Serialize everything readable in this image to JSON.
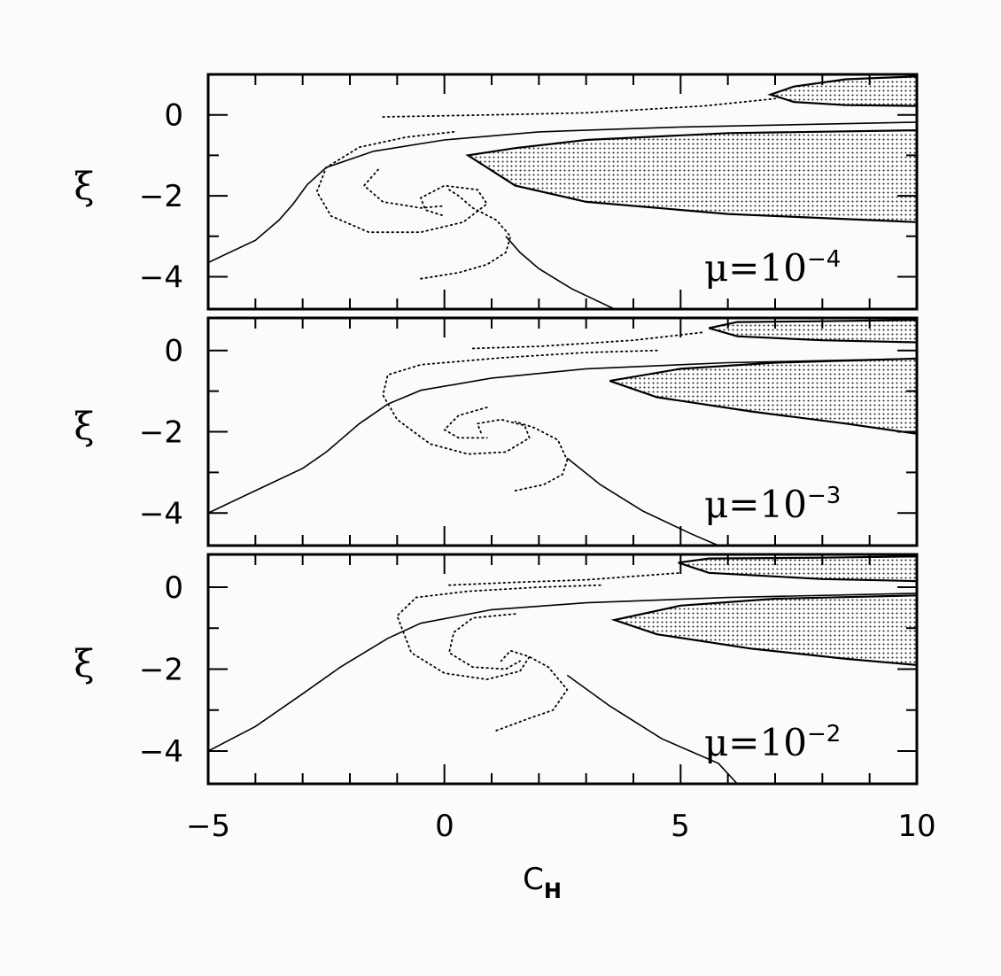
{
  "chart_data": {
    "type": "line",
    "shared_x": {
      "label": "C",
      "label_subscript": "H",
      "range": [
        -5,
        10
      ],
      "ticks": [
        -5,
        0,
        5,
        10
      ],
      "tick_labels": [
        "−5",
        "0",
        "5",
        "10"
      ]
    },
    "panels": [
      {
        "annotation": "μ=10",
        "annotation_exp": "−4",
        "ylabel": "ξ",
        "ylim": [
          -4.8,
          1.0
        ],
        "yticks": [
          0,
          -2,
          -4
        ],
        "ytick_labels": [
          "0",
          "−2",
          "−4"
        ],
        "solid_line": [
          [
            -5.0,
            -3.65
          ],
          [
            -4.0,
            -3.1
          ],
          [
            -3.5,
            -2.6
          ],
          [
            -3.2,
            -2.2
          ],
          [
            -2.9,
            -1.72
          ],
          [
            -2.5,
            -1.3
          ],
          [
            -1.5,
            -0.9
          ],
          [
            0.0,
            -0.62
          ],
          [
            2.0,
            -0.42
          ],
          [
            5.0,
            -0.3
          ],
          [
            10.0,
            -0.18
          ]
        ],
        "solid_line_lower": [
          [
            1.3,
            -3.0
          ],
          [
            1.6,
            -3.4
          ],
          [
            2.0,
            -3.8
          ],
          [
            2.7,
            -4.3
          ],
          [
            3.6,
            -4.8
          ]
        ],
        "dotted_curves": [
          [
            [
              -1.3,
              -0.05
            ],
            [
              1.0,
              0.0
            ],
            [
              3.0,
              0.05
            ],
            [
              5.5,
              0.22
            ],
            [
              7.0,
              0.4
            ]
          ],
          [
            [
              0.2,
              -0.42
            ],
            [
              -0.8,
              -0.55
            ],
            [
              -1.8,
              -0.8
            ],
            [
              -2.5,
              -1.3
            ],
            [
              -2.7,
              -1.9
            ],
            [
              -2.4,
              -2.5
            ],
            [
              -1.6,
              -2.9
            ],
            [
              -0.5,
              -2.9
            ],
            [
              0.4,
              -2.65
            ],
            [
              0.9,
              -2.2
            ],
            [
              0.7,
              -1.85
            ],
            [
              0.0,
              -1.75
            ],
            [
              -0.5,
              -2.05
            ],
            [
              -0.4,
              -2.35
            ],
            [
              0.0,
              -2.5
            ]
          ],
          [
            [
              -1.4,
              -1.35
            ],
            [
              -1.7,
              -1.75
            ],
            [
              -1.3,
              -2.15
            ],
            [
              -0.5,
              -2.3
            ],
            [
              0.0,
              -2.25
            ]
          ],
          [
            [
              -0.5,
              -4.05
            ],
            [
              0.3,
              -3.9
            ],
            [
              0.9,
              -3.7
            ],
            [
              1.3,
              -3.4
            ],
            [
              1.4,
              -3.0
            ],
            [
              1.1,
              -2.6
            ],
            [
              0.6,
              -2.3
            ],
            [
              0.3,
              -2.0
            ],
            [
              0.1,
              -1.85
            ]
          ]
        ],
        "shaded_regions": [
          {
            "upper": [
              [
                10.0,
                -0.38
              ],
              [
                6.0,
                -0.45
              ],
              [
                3.0,
                -0.62
              ],
              [
                1.5,
                -0.82
              ],
              [
                0.5,
                -1.0
              ]
            ],
            "lower": [
              [
                0.5,
                -1.0
              ],
              [
                1.5,
                -1.75
              ],
              [
                3.0,
                -2.15
              ],
              [
                6.0,
                -2.45
              ],
              [
                10.0,
                -2.65
              ]
            ]
          },
          {
            "upper": [
              [
                10.0,
                0.95
              ],
              [
                8.5,
                0.88
              ],
              [
                7.4,
                0.7
              ],
              [
                6.9,
                0.5
              ]
            ],
            "lower": [
              [
                6.9,
                0.5
              ],
              [
                7.4,
                0.32
              ],
              [
                8.5,
                0.24
              ],
              [
                10.0,
                0.22
              ]
            ]
          }
        ]
      },
      {
        "annotation": "μ=10",
        "annotation_exp": "−3",
        "ylabel": "ξ",
        "ylim": [
          -4.8,
          0.8
        ],
        "yticks": [
          0,
          -2,
          -4
        ],
        "ytick_labels": [
          "0",
          "−2",
          "−4"
        ],
        "solid_line": [
          [
            -5.0,
            -4.0
          ],
          [
            -4.0,
            -3.45
          ],
          [
            -3.0,
            -2.9
          ],
          [
            -2.5,
            -2.5
          ],
          [
            -1.8,
            -1.8
          ],
          [
            -1.2,
            -1.32
          ],
          [
            -0.5,
            -0.98
          ],
          [
            1.0,
            -0.68
          ],
          [
            3.0,
            -0.45
          ],
          [
            6.0,
            -0.3
          ],
          [
            10.0,
            -0.2
          ]
        ],
        "solid_line_lower": [
          [
            2.6,
            -2.65
          ],
          [
            3.3,
            -3.3
          ],
          [
            4.2,
            -3.95
          ],
          [
            5.2,
            -4.5
          ],
          [
            5.8,
            -4.8
          ]
        ],
        "dotted_curves": [
          [
            [
              0.6,
              0.05
            ],
            [
              2.0,
              0.1
            ],
            [
              4.0,
              0.25
            ],
            [
              5.5,
              0.45
            ]
          ],
          [
            [
              4.5,
              0.0
            ],
            [
              3.0,
              -0.05
            ],
            [
              1.2,
              -0.18
            ],
            [
              -0.5,
              -0.35
            ],
            [
              -1.2,
              -0.6
            ],
            [
              -1.3,
              -1.1
            ],
            [
              -1.0,
              -1.7
            ],
            [
              -0.3,
              -2.3
            ],
            [
              0.5,
              -2.55
            ],
            [
              1.3,
              -2.5
            ],
            [
              1.8,
              -2.15
            ],
            [
              1.7,
              -1.85
            ],
            [
              1.2,
              -1.7
            ],
            [
              0.7,
              -1.8
            ],
            [
              0.8,
              -2.1
            ]
          ],
          [
            [
              0.9,
              -1.4
            ],
            [
              0.3,
              -1.6
            ],
            [
              0.0,
              -1.95
            ],
            [
              0.3,
              -2.15
            ],
            [
              0.9,
              -2.15
            ]
          ],
          [
            [
              1.5,
              -3.45
            ],
            [
              2.1,
              -3.3
            ],
            [
              2.5,
              -3.05
            ],
            [
              2.6,
              -2.7
            ],
            [
              2.4,
              -2.2
            ],
            [
              1.9,
              -1.9
            ],
            [
              1.5,
              -1.75
            ]
          ]
        ],
        "shaded_regions": [
          {
            "upper": [
              [
                10.0,
                -0.2
              ],
              [
                7.0,
                -0.3
              ],
              [
                5.0,
                -0.45
              ],
              [
                3.5,
                -0.75
              ]
            ],
            "lower": [
              [
                3.5,
                -0.75
              ],
              [
                4.5,
                -1.15
              ],
              [
                6.5,
                -1.5
              ],
              [
                8.5,
                -1.8
              ],
              [
                10.0,
                -2.05
              ]
            ]
          },
          {
            "upper": [
              [
                10.0,
                0.75
              ],
              [
                8.0,
                0.72
              ],
              [
                6.2,
                0.7
              ],
              [
                5.6,
                0.55
              ]
            ],
            "lower": [
              [
                5.6,
                0.55
              ],
              [
                6.2,
                0.35
              ],
              [
                8.0,
                0.25
              ],
              [
                10.0,
                0.2
              ]
            ]
          }
        ]
      },
      {
        "annotation": "μ=10",
        "annotation_exp": "−2",
        "ylabel": "ξ",
        "ylim": [
          -4.8,
          0.8
        ],
        "yticks": [
          0,
          -2,
          -4
        ],
        "ytick_labels": [
          "0",
          "−2",
          "−4"
        ],
        "solid_line": [
          [
            -5.0,
            -4.0
          ],
          [
            -4.0,
            -3.4
          ],
          [
            -3.0,
            -2.6
          ],
          [
            -2.2,
            -1.95
          ],
          [
            -1.2,
            -1.25
          ],
          [
            -0.5,
            -0.88
          ],
          [
            1.0,
            -0.55
          ],
          [
            3.0,
            -0.38
          ],
          [
            6.0,
            -0.25
          ],
          [
            10.0,
            -0.15
          ]
        ],
        "solid_line_lower": [
          [
            2.6,
            -2.15
          ],
          [
            3.5,
            -2.9
          ],
          [
            4.6,
            -3.7
          ],
          [
            5.8,
            -4.3
          ],
          [
            6.2,
            -4.8
          ]
        ],
        "dotted_curves": [
          [
            [
              0.1,
              0.05
            ],
            [
              1.5,
              0.12
            ],
            [
              3.0,
              0.18
            ],
            [
              5.0,
              0.35
            ]
          ],
          [
            [
              3.3,
              0.05
            ],
            [
              2.0,
              0.0
            ],
            [
              0.5,
              -0.1
            ],
            [
              -0.6,
              -0.25
            ],
            [
              -1.0,
              -0.7
            ],
            [
              -0.7,
              -1.6
            ],
            [
              0.0,
              -2.1
            ],
            [
              0.9,
              -2.25
            ],
            [
              1.6,
              -2.05
            ],
            [
              1.8,
              -1.7
            ],
            [
              1.4,
              -1.55
            ],
            [
              1.2,
              -1.8
            ]
          ],
          [
            [
              1.5,
              -0.65
            ],
            [
              0.6,
              -0.75
            ],
            [
              0.2,
              -1.1
            ],
            [
              0.1,
              -1.6
            ],
            [
              0.6,
              -1.95
            ],
            [
              1.3,
              -2.0
            ],
            [
              1.6,
              -1.8
            ]
          ],
          [
            [
              1.1,
              -3.5
            ],
            [
              1.8,
              -3.2
            ],
            [
              2.3,
              -3.0
            ],
            [
              2.6,
              -2.5
            ],
            [
              2.2,
              -1.95
            ],
            [
              1.8,
              -1.7
            ]
          ]
        ],
        "shaded_regions": [
          {
            "upper": [
              [
                10.0,
                -0.2
              ],
              [
                7.0,
                -0.28
              ],
              [
                5.0,
                -0.45
              ],
              [
                3.6,
                -0.8
              ]
            ],
            "lower": [
              [
                3.6,
                -0.8
              ],
              [
                4.5,
                -1.15
              ],
              [
                6.5,
                -1.5
              ],
              [
                8.5,
                -1.75
              ],
              [
                10.0,
                -1.9
              ]
            ]
          },
          {
            "upper": [
              [
                10.0,
                0.75
              ],
              [
                8.0,
                0.72
              ],
              [
                5.6,
                0.7
              ],
              [
                4.95,
                0.6
              ]
            ],
            "lower": [
              [
                4.95,
                0.6
              ],
              [
                5.6,
                0.35
              ],
              [
                8.0,
                0.2
              ],
              [
                10.0,
                0.15
              ]
            ]
          }
        ]
      }
    ]
  }
}
